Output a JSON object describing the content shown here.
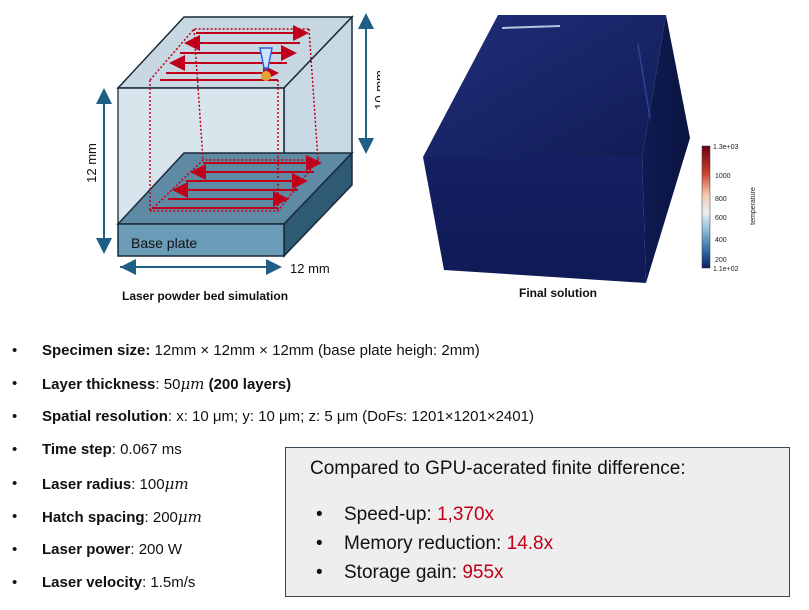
{
  "diagram": {
    "caption_left": "Laser powder bed simulation",
    "caption_right": "Final solution",
    "label_height": "12 mm",
    "label_depth": "12 mm",
    "label_layer": "10 mm",
    "base_plate": "Base plate"
  },
  "colorbar": {
    "title": "temperature",
    "ticks": [
      "1.3e+03",
      "1000",
      "800",
      "600",
      "400",
      "200",
      "1.1e+02"
    ],
    "colors": [
      "#6b0018",
      "#c8402c",
      "#f4c9b0",
      "#e8f1f4",
      "#79aed0",
      "#2a5fa0",
      "#0d1f5c"
    ]
  },
  "params": [
    {
      "label": "Specimen size:",
      "value": " 12mm × 12mm × 12mm (base plate heigh: 2mm)"
    },
    {
      "label": "Layer thickness",
      "value_pre": ": 50",
      "value_math": "μm",
      "value_bold": " (200 layers)"
    },
    {
      "label": "Spatial resolution",
      "value": ": x: 10 μm; y: 10 μm; z: 5 μm (DoFs: 1201×1201×2401)"
    },
    {
      "label": "Time step",
      "value": ": 0.067 ms"
    },
    {
      "label": "Laser radius",
      "value_pre": ": 100",
      "value_math": "μm"
    },
    {
      "label": "Hatch spacing",
      "value_pre": ": 200",
      "value_math": "μm"
    },
    {
      "label": "Laser power",
      "value": ": 200 W"
    },
    {
      "label": "Laser velocity",
      "value": ": 1.5m/s"
    }
  ],
  "comparison": {
    "heading": "Compared to GPU-acerated finite difference:",
    "items": [
      {
        "label": "Speed-up: ",
        "value": "1,370x"
      },
      {
        "label": "Memory reduction: ",
        "value": "14.8x"
      },
      {
        "label": "Storage gain: ",
        "value": "955x"
      }
    ]
  }
}
